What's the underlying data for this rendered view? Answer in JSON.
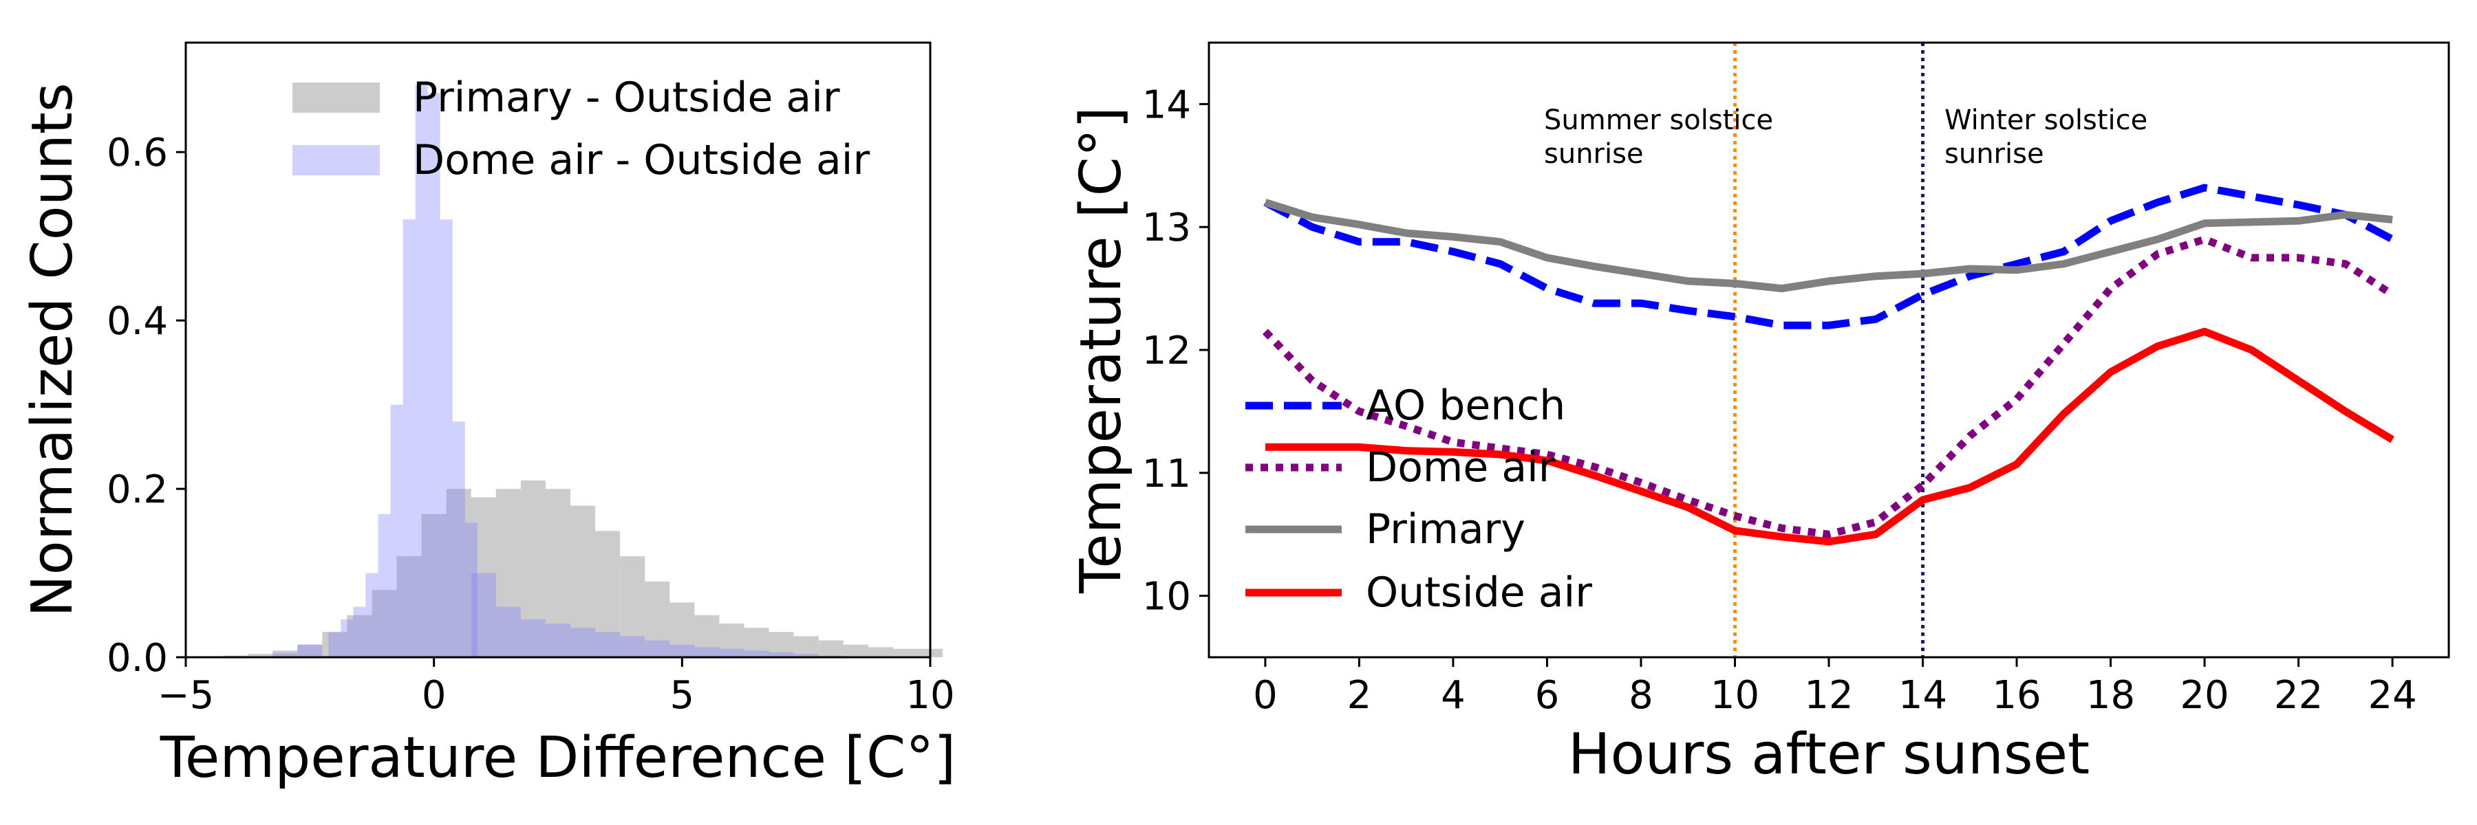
{
  "chart_data": [
    {
      "type": "histogram",
      "xlabel": "Temperature Difference [C°]",
      "ylabel": "Normalized Counts",
      "xlim": [
        -5,
        10
      ],
      "ylim": [
        0,
        0.73
      ],
      "xticks": [
        -5,
        0,
        5,
        10
      ],
      "xtick_labels": [
        "−5",
        "0",
        "5",
        "10"
      ],
      "yticks": [
        0.0,
        0.2,
        0.4,
        0.6
      ],
      "ytick_labels": [
        "0.0",
        "0.2",
        "0.4",
        "0.6"
      ],
      "legend": "top-right",
      "grid": false,
      "series": [
        {
          "name": "Primary - Outside air",
          "color": "#b0b0b0",
          "x": [
            -4.0,
            -3.5,
            -3.0,
            -2.5,
            -2.0,
            -1.5,
            -1.0,
            -0.5,
            0.0,
            0.5,
            1.0,
            1.5,
            2.0,
            2.5,
            3.0,
            3.5,
            4.0,
            4.5,
            5.0,
            5.5,
            6.0,
            6.5,
            7.0,
            7.5,
            8.0,
            8.5,
            9.0,
            9.5,
            10.0
          ],
          "values": [
            0.002,
            0.004,
            0.008,
            0.015,
            0.03,
            0.05,
            0.08,
            0.12,
            0.17,
            0.2,
            0.19,
            0.2,
            0.21,
            0.2,
            0.18,
            0.15,
            0.12,
            0.09,
            0.065,
            0.05,
            0.04,
            0.035,
            0.03,
            0.025,
            0.02,
            0.015,
            0.012,
            0.01,
            0.01
          ]
        },
        {
          "name": "Dome air - Outside air",
          "color": "#7b7bff",
          "x": [
            -3.0,
            -2.5,
            -2.0,
            -1.75,
            -1.5,
            -1.25,
            -1.0,
            -0.75,
            -0.5,
            -0.25,
            0.0,
            0.25,
            0.5,
            0.75,
            1.0,
            1.5,
            2.0,
            2.5,
            3.0,
            3.5,
            4.0,
            4.5,
            5.0,
            5.5,
            6.0,
            6.5,
            7.0,
            7.5,
            8.0
          ],
          "values": [
            0.005,
            0.015,
            0.03,
            0.045,
            0.06,
            0.1,
            0.17,
            0.3,
            0.52,
            0.68,
            0.67,
            0.52,
            0.28,
            0.16,
            0.1,
            0.06,
            0.045,
            0.04,
            0.035,
            0.03,
            0.025,
            0.02,
            0.015,
            0.012,
            0.01,
            0.008,
            0.006,
            0.004,
            0.002
          ]
        }
      ]
    },
    {
      "type": "line",
      "xlabel": "Hours after sunset",
      "ylabel": "Temperature [C°]",
      "xlim": [
        -1.2,
        25.2
      ],
      "ylim": [
        9.5,
        14.5
      ],
      "xticks": [
        0,
        2,
        4,
        6,
        8,
        10,
        12,
        14,
        16,
        18,
        20,
        22,
        24
      ],
      "yticks": [
        10,
        11,
        12,
        13,
        14
      ],
      "legend": "lower-left",
      "grid": false,
      "x": [
        0,
        1,
        2,
        3,
        4,
        5,
        6,
        7,
        8,
        9,
        10,
        11,
        12,
        13,
        14,
        15,
        16,
        17,
        18,
        19,
        20,
        21,
        22,
        23,
        24
      ],
      "series": [
        {
          "name": "AO bench",
          "color": "#0000ff",
          "style": "dashed",
          "values": [
            13.2,
            13.0,
            12.88,
            12.88,
            12.8,
            12.7,
            12.5,
            12.38,
            12.38,
            12.32,
            12.27,
            12.2,
            12.2,
            12.25,
            12.45,
            12.6,
            12.7,
            12.8,
            13.05,
            13.2,
            13.32,
            13.25,
            13.18,
            13.1,
            12.9
          ]
        },
        {
          "name": "Dome air",
          "color": "#800080",
          "style": "dotted",
          "values": [
            12.15,
            11.75,
            11.5,
            11.38,
            11.25,
            11.2,
            11.15,
            11.05,
            10.92,
            10.78,
            10.65,
            10.55,
            10.5,
            10.6,
            10.9,
            11.3,
            11.6,
            12.05,
            12.5,
            12.78,
            12.9,
            12.75,
            12.75,
            12.7,
            12.45
          ]
        },
        {
          "name": "Primary",
          "color": "#808080",
          "style": "solid",
          "values": [
            13.2,
            13.08,
            13.02,
            12.95,
            12.92,
            12.88,
            12.75,
            12.68,
            12.62,
            12.56,
            12.54,
            12.5,
            12.56,
            12.6,
            12.62,
            12.66,
            12.65,
            12.7,
            12.8,
            12.9,
            13.03,
            13.04,
            13.05,
            13.1,
            13.06
          ]
        },
        {
          "name": "Outside air",
          "color": "#ff0000",
          "style": "solid",
          "values": [
            11.21,
            11.21,
            11.21,
            11.18,
            11.17,
            11.15,
            11.1,
            10.98,
            10.85,
            10.72,
            10.53,
            10.48,
            10.44,
            10.5,
            10.78,
            10.88,
            11.07,
            11.48,
            11.82,
            12.03,
            12.15,
            12.0,
            11.75,
            11.5,
            11.27
          ]
        }
      ],
      "annotations": [
        {
          "x": 10,
          "color": "#ff8c00",
          "style": "dotted",
          "text_lines": [
            "Summer solstice",
            "sunrise"
          ]
        },
        {
          "x": 14,
          "color": "#191970",
          "style": "dotted",
          "text_lines": [
            "Winter solstice",
            "sunrise"
          ]
        }
      ]
    }
  ]
}
